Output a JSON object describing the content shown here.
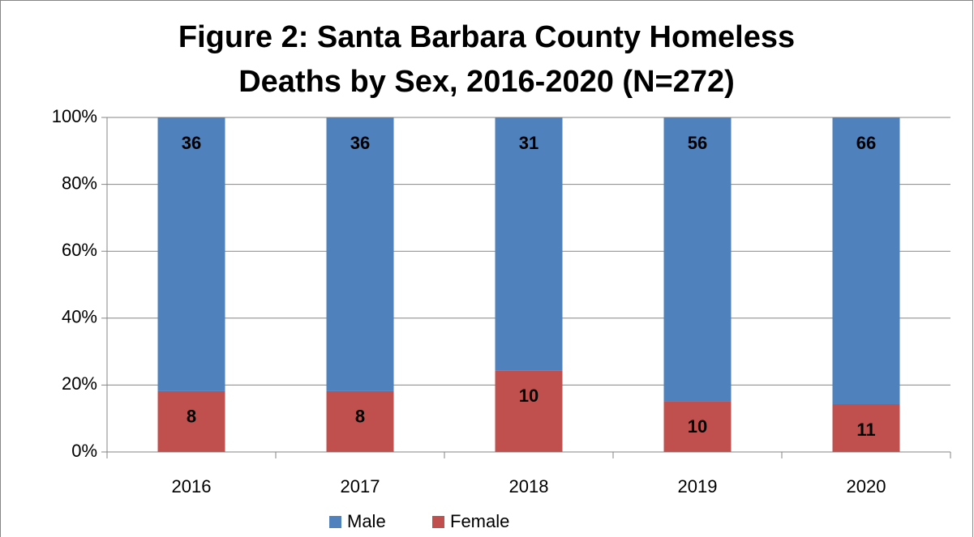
{
  "chart_data": {
    "type": "bar",
    "stacked": "percent",
    "title": [
      "Figure 2: Santa Barbara County Homeless",
      "Deaths by Sex, 2016-2020 (N=272)"
    ],
    "categories": [
      "2016",
      "2017",
      "2018",
      "2019",
      "2020"
    ],
    "series": [
      {
        "name": "Male",
        "color": "#4f81bd",
        "values": [
          36,
          36,
          31,
          56,
          66
        ]
      },
      {
        "name": "Female",
        "color": "#c0504d",
        "values": [
          8,
          8,
          10,
          10,
          11
        ]
      }
    ],
    "stack_order": [
      "Female",
      "Male"
    ],
    "ylim": [
      0,
      100
    ],
    "yticks": [
      {
        "value": 0,
        "label": "0%"
      },
      {
        "value": 20,
        "label": "20%"
      },
      {
        "value": 40,
        "label": "40%"
      },
      {
        "value": 60,
        "label": "60%"
      },
      {
        "value": 80,
        "label": "80%"
      },
      {
        "value": 100,
        "label": "100%"
      }
    ],
    "grid": true,
    "legend": "bottom"
  }
}
